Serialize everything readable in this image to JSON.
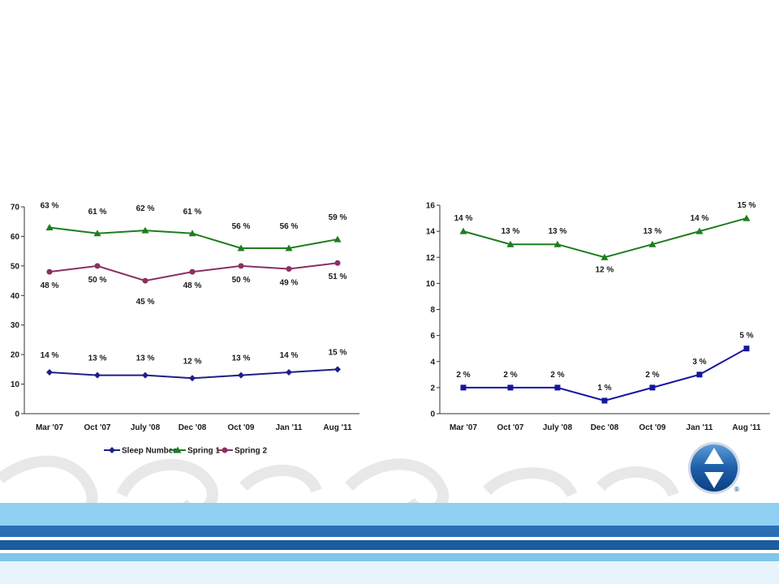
{
  "chart_data": [
    {
      "type": "line",
      "categories": [
        "Mar '07",
        "Oct '07",
        "July '08",
        "Dec '08",
        "Oct '09",
        "Jan '11",
        "Aug '11"
      ],
      "ylim": [
        0,
        70
      ],
      "yticks": [
        "0",
        "10",
        "20",
        "30",
        "40",
        "50",
        "60",
        "70"
      ],
      "grid": false,
      "legend_position": "bottom",
      "series": [
        {
          "name": "Sleep Number",
          "color": "#1f1f8a",
          "marker": "diamond",
          "values": [
            14,
            13,
            13,
            12,
            13,
            14,
            15
          ],
          "labels": [
            "14 %",
            "13 %",
            "13 %",
            "12 %",
            "13 %",
            "14 %",
            "15 %"
          ]
        },
        {
          "name": "Spring 1",
          "color": "#1e7d1e",
          "marker": "triangle",
          "values": [
            63,
            61,
            62,
            61,
            56,
            56,
            59
          ],
          "labels": [
            "63 %",
            "61 %",
            "62 %",
            "61 %",
            "56 %",
            "56 %",
            "59 %"
          ]
        },
        {
          "name": "Spring 2",
          "color": "#8b2f62",
          "marker": "circle",
          "values": [
            48,
            50,
            45,
            48,
            50,
            49,
            51
          ],
          "labels": [
            "48 %",
            "50 %",
            "45 %",
            "48 %",
            "50 %",
            "49 %",
            "51 %"
          ]
        }
      ]
    },
    {
      "type": "line",
      "categories": [
        "Mar '07",
        "Oct '07",
        "July '08",
        "Dec '08",
        "Oct '09",
        "Jan '11",
        "Aug '11"
      ],
      "ylim": [
        0,
        16
      ],
      "yticks": [
        "0",
        "2",
        "4",
        "6",
        "8",
        "10",
        "12",
        "14",
        "16"
      ],
      "grid": false,
      "legend_position": "none",
      "series": [
        {
          "color": "#1e7d1e",
          "marker": "triangle",
          "values": [
            14,
            13,
            13,
            12,
            13,
            14,
            15
          ],
          "labels": [
            "14 %",
            "13 %",
            "13 %",
            "12 %",
            "13 %",
            "14 %",
            "15 %"
          ]
        },
        {
          "color": "#1515a0",
          "marker": "square",
          "values": [
            2,
            2,
            2,
            1,
            2,
            3,
            5
          ],
          "labels": [
            "2 %",
            "2 %",
            "2 %",
            "1 %",
            "2 %",
            "3 %",
            "5 %"
          ]
        }
      ]
    }
  ],
  "logo": {
    "icon": "up-down-arrows-logo-icon",
    "mark": "®",
    "color": "#1d5fa8"
  }
}
